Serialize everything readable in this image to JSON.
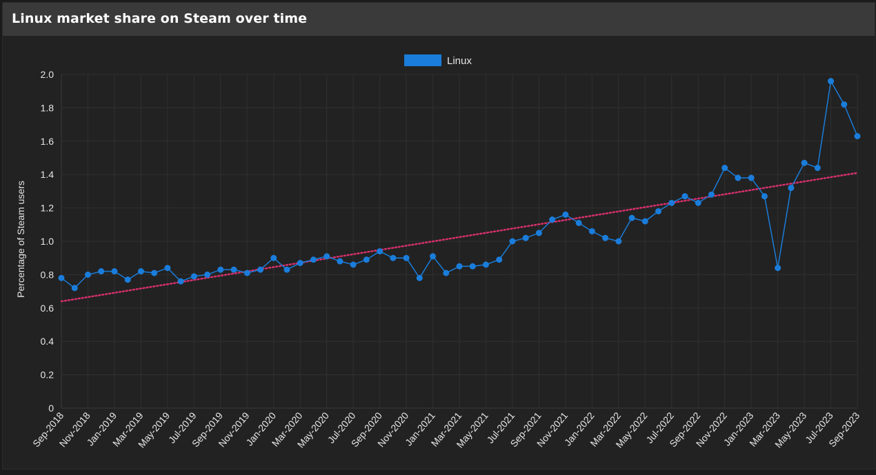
{
  "panel": {
    "title": "Linux market share on Steam over time"
  },
  "colors": {
    "series": "#1a7ddb",
    "trend": "#d8306d",
    "grid": "#303030",
    "text": "#e6e6e6"
  },
  "chart_data": {
    "type": "line",
    "title": "",
    "ylabel": "Percentage of Steam users",
    "xlabel": "",
    "ylim": [
      0,
      2.0
    ],
    "yticks": [
      "0",
      "0.2",
      "0.4",
      "0.6",
      "0.8",
      "1.0",
      "1.2",
      "1.4",
      "1.6",
      "1.8",
      "2.0"
    ],
    "yticks_values": [
      0,
      0.2,
      0.4,
      0.6,
      0.8,
      1.0,
      1.2,
      1.4,
      1.6,
      1.8,
      2.0
    ],
    "grid": true,
    "legend": {
      "position": "top-center",
      "entries": [
        "Linux"
      ]
    },
    "x": [
      "Sep-2018",
      "Oct-2018",
      "Nov-2018",
      "Dec-2018",
      "Jan-2019",
      "Feb-2019",
      "Mar-2019",
      "Apr-2019",
      "May-2019",
      "Jun-2019",
      "Jul-2019",
      "Aug-2019",
      "Sep-2019",
      "Oct-2019",
      "Nov-2019",
      "Dec-2019",
      "Jan-2020",
      "Feb-2020",
      "Mar-2020",
      "Apr-2020",
      "May-2020",
      "Jun-2020",
      "Jul-2020",
      "Aug-2020",
      "Sep-2020",
      "Oct-2020",
      "Nov-2020",
      "Dec-2020",
      "Jan-2021",
      "Feb-2021",
      "Mar-2021",
      "Apr-2021",
      "May-2021",
      "Jun-2021",
      "Jul-2021",
      "Aug-2021",
      "Sep-2021",
      "Oct-2021",
      "Nov-2021",
      "Dec-2021",
      "Jan-2022",
      "Feb-2022",
      "Mar-2022",
      "Apr-2022",
      "May-2022",
      "Jun-2022",
      "Jul-2022",
      "Aug-2022",
      "Sep-2022",
      "Oct-2022",
      "Nov-2022",
      "Dec-2022",
      "Jan-2023",
      "Feb-2023",
      "Mar-2023",
      "Apr-2023",
      "May-2023",
      "Jun-2023",
      "Jul-2023",
      "Aug-2023",
      "Sep-2023"
    ],
    "xticks_shown": [
      "Sep-2018",
      "Nov-2018",
      "Jan-2019",
      "Mar-2019",
      "May-2019",
      "Jul-2019",
      "Sep-2019",
      "Nov-2019",
      "Jan-2020",
      "Mar-2020",
      "May-2020",
      "Jul-2020",
      "Sep-2020",
      "Nov-2020",
      "Jan-2021",
      "Mar-2021",
      "May-2021",
      "Jul-2021",
      "Sep-2021",
      "Nov-2021",
      "Jan-2022",
      "Mar-2022",
      "May-2022",
      "Jul-2022",
      "Sep-2022",
      "Nov-2022",
      "Jan-2023",
      "Mar-2023",
      "May-2023",
      "Jul-2023",
      "Sep-2023"
    ],
    "series": [
      {
        "name": "Linux",
        "values": [
          0.78,
          0.72,
          0.8,
          0.82,
          0.82,
          0.77,
          0.82,
          0.81,
          0.84,
          0.76,
          0.79,
          0.8,
          0.83,
          0.83,
          0.81,
          0.83,
          0.9,
          0.83,
          0.87,
          0.89,
          0.91,
          0.88,
          0.86,
          0.89,
          0.94,
          0.9,
          0.9,
          0.78,
          0.91,
          0.81,
          0.85,
          0.85,
          0.86,
          0.89,
          1.0,
          1.02,
          1.05,
          1.13,
          1.16,
          1.11,
          1.06,
          1.02,
          1.0,
          1.14,
          1.12,
          1.18,
          1.23,
          1.27,
          1.23,
          1.28,
          1.44,
          1.38,
          1.38,
          1.27,
          0.84,
          1.32,
          1.47,
          1.44,
          1.96,
          1.82,
          1.63
        ]
      }
    ],
    "trendline": {
      "style": "dotted",
      "start": 0.64,
      "end": 1.41
    }
  }
}
